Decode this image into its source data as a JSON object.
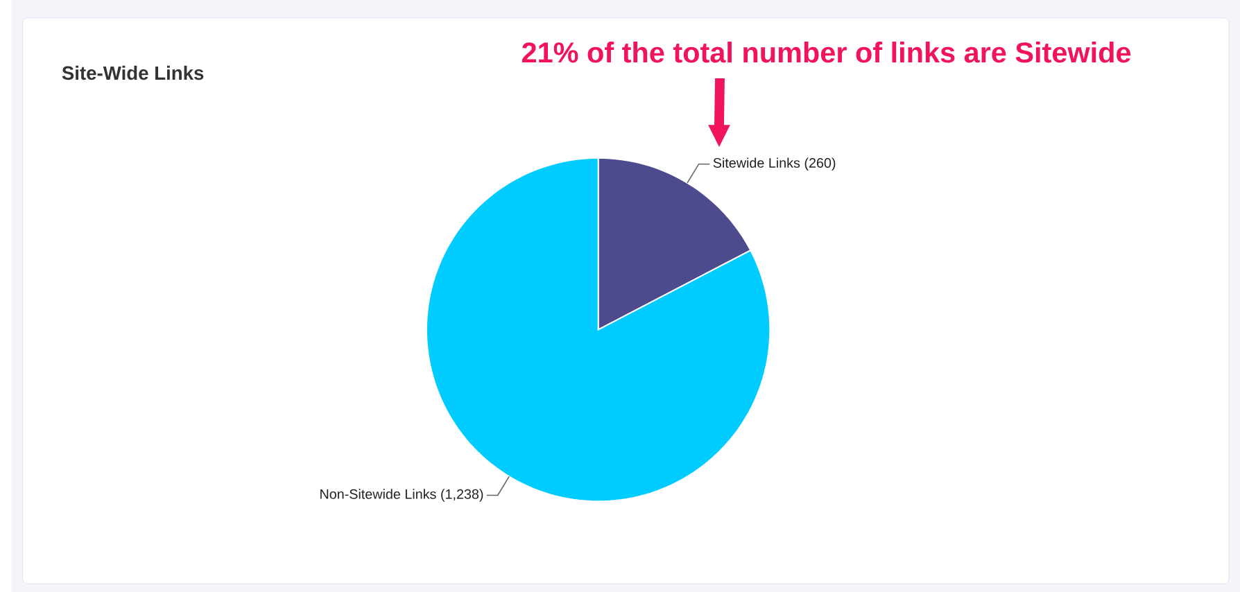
{
  "chart_data": {
    "type": "pie",
    "title": "Site-Wide Links",
    "categories": [
      "Sitewide Links",
      "Non-Sitewide Links"
    ],
    "values": [
      260,
      1238
    ],
    "value_labels": [
      "(260)",
      "(1,238)"
    ],
    "colors": [
      "#4e4a8e",
      "#00ccff"
    ],
    "annotations": [
      "21% of the total number of links are Sitewide"
    ]
  }
}
